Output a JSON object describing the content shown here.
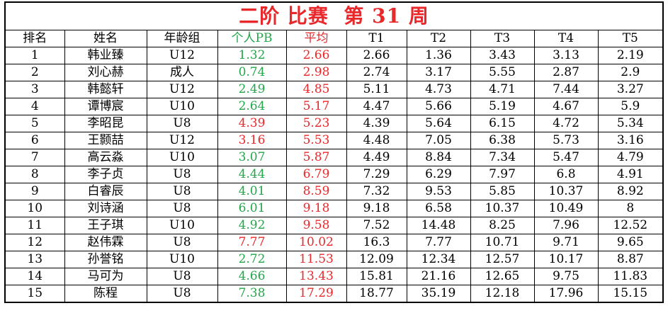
{
  "title": "二阶 比赛  第 31 周",
  "table": {
    "header": [
      "排名",
      "姓名",
      "年龄组",
      "个人PB",
      "平均",
      "T1",
      "T2",
      "T3",
      "T4",
      "T5"
    ],
    "header_colors": [
      "#000000",
      "#000000",
      "#000000",
      "#22a64a",
      "#e8282b",
      "#000000",
      "#000000",
      "#000000",
      "#000000",
      "#000000"
    ],
    "avg_color": "#e8282b",
    "pb_colors": [
      "#22a64a",
      "#22a64a",
      "#22a64a",
      "#22a64a",
      "#e8282b",
      "#e8282b",
      "#22a64a",
      "#22a64a",
      "#22a64a",
      "#22a64a",
      "#22a64a",
      "#e8282b",
      "#22a64a",
      "#22a64a",
      "#22a64a"
    ],
    "rows": [
      [
        "1",
        "韩业臻",
        "U12",
        "1.32",
        "2.66",
        "2.66",
        "1.36",
        "3.43",
        "3.13",
        "2.19"
      ],
      [
        "2",
        "刘心赫",
        "成人",
        "0.74",
        "2.98",
        "2.74",
        "3.17",
        "5.55",
        "2.87",
        "2.9"
      ],
      [
        "3",
        "韩懿轩",
        "U12",
        "2.49",
        "4.85",
        "5.11",
        "4.73",
        "4.71",
        "7.44",
        "3.27"
      ],
      [
        "4",
        "谭博宸",
        "U10",
        "2.64",
        "5.17",
        "4.47",
        "5.66",
        "5.19",
        "4.67",
        "5.9"
      ],
      [
        "5",
        "李昭昆",
        "U8",
        "4.39",
        "5.23",
        "4.39",
        "5.64",
        "6.15",
        "4.72",
        "5.34"
      ],
      [
        "6",
        "王颢喆",
        "U12",
        "3.16",
        "5.53",
        "4.48",
        "7.05",
        "6.38",
        "5.73",
        "3.16"
      ],
      [
        "7",
        "高云淼",
        "U10",
        "3.07",
        "5.87",
        "4.49",
        "8.84",
        "7.34",
        "5.47",
        "4.79"
      ],
      [
        "8",
        "李子贞",
        "U8",
        "4.44",
        "6.79",
        "7.29",
        "6.29",
        "7.97",
        "6.8",
        "4.91"
      ],
      [
        "9",
        "白睿辰",
        "U8",
        "4.01",
        "8.59",
        "7.32",
        "9.53",
        "5.85",
        "10.37",
        "8.92"
      ],
      [
        "10",
        "刘诗涵",
        "U8",
        "6.01",
        "9.18",
        "9.18",
        "6.58",
        "10.37",
        "10.49",
        "8"
      ],
      [
        "11",
        "王子琪",
        "U10",
        "4.92",
        "9.58",
        "7.52",
        "14.48",
        "8.25",
        "7.96",
        "12.52"
      ],
      [
        "12",
        "赵伟霖",
        "U8",
        "7.77",
        "10.02",
        "16.3",
        "7.77",
        "10.71",
        "9.71",
        "9.65"
      ],
      [
        "13",
        "孙誉铭",
        "U10",
        "2.72",
        "11.53",
        "12.09",
        "12.34",
        "12.57",
        "10.17",
        "8.87"
      ],
      [
        "14",
        "马可为",
        "U8",
        "4.66",
        "13.43",
        "15.81",
        "21.16",
        "12.65",
        "9.75",
        "11.83"
      ],
      [
        "15",
        "陈程",
        "U8",
        "7.38",
        "17.29",
        "18.77",
        "35.19",
        "12.18",
        "17.96",
        "15.15"
      ]
    ]
  }
}
